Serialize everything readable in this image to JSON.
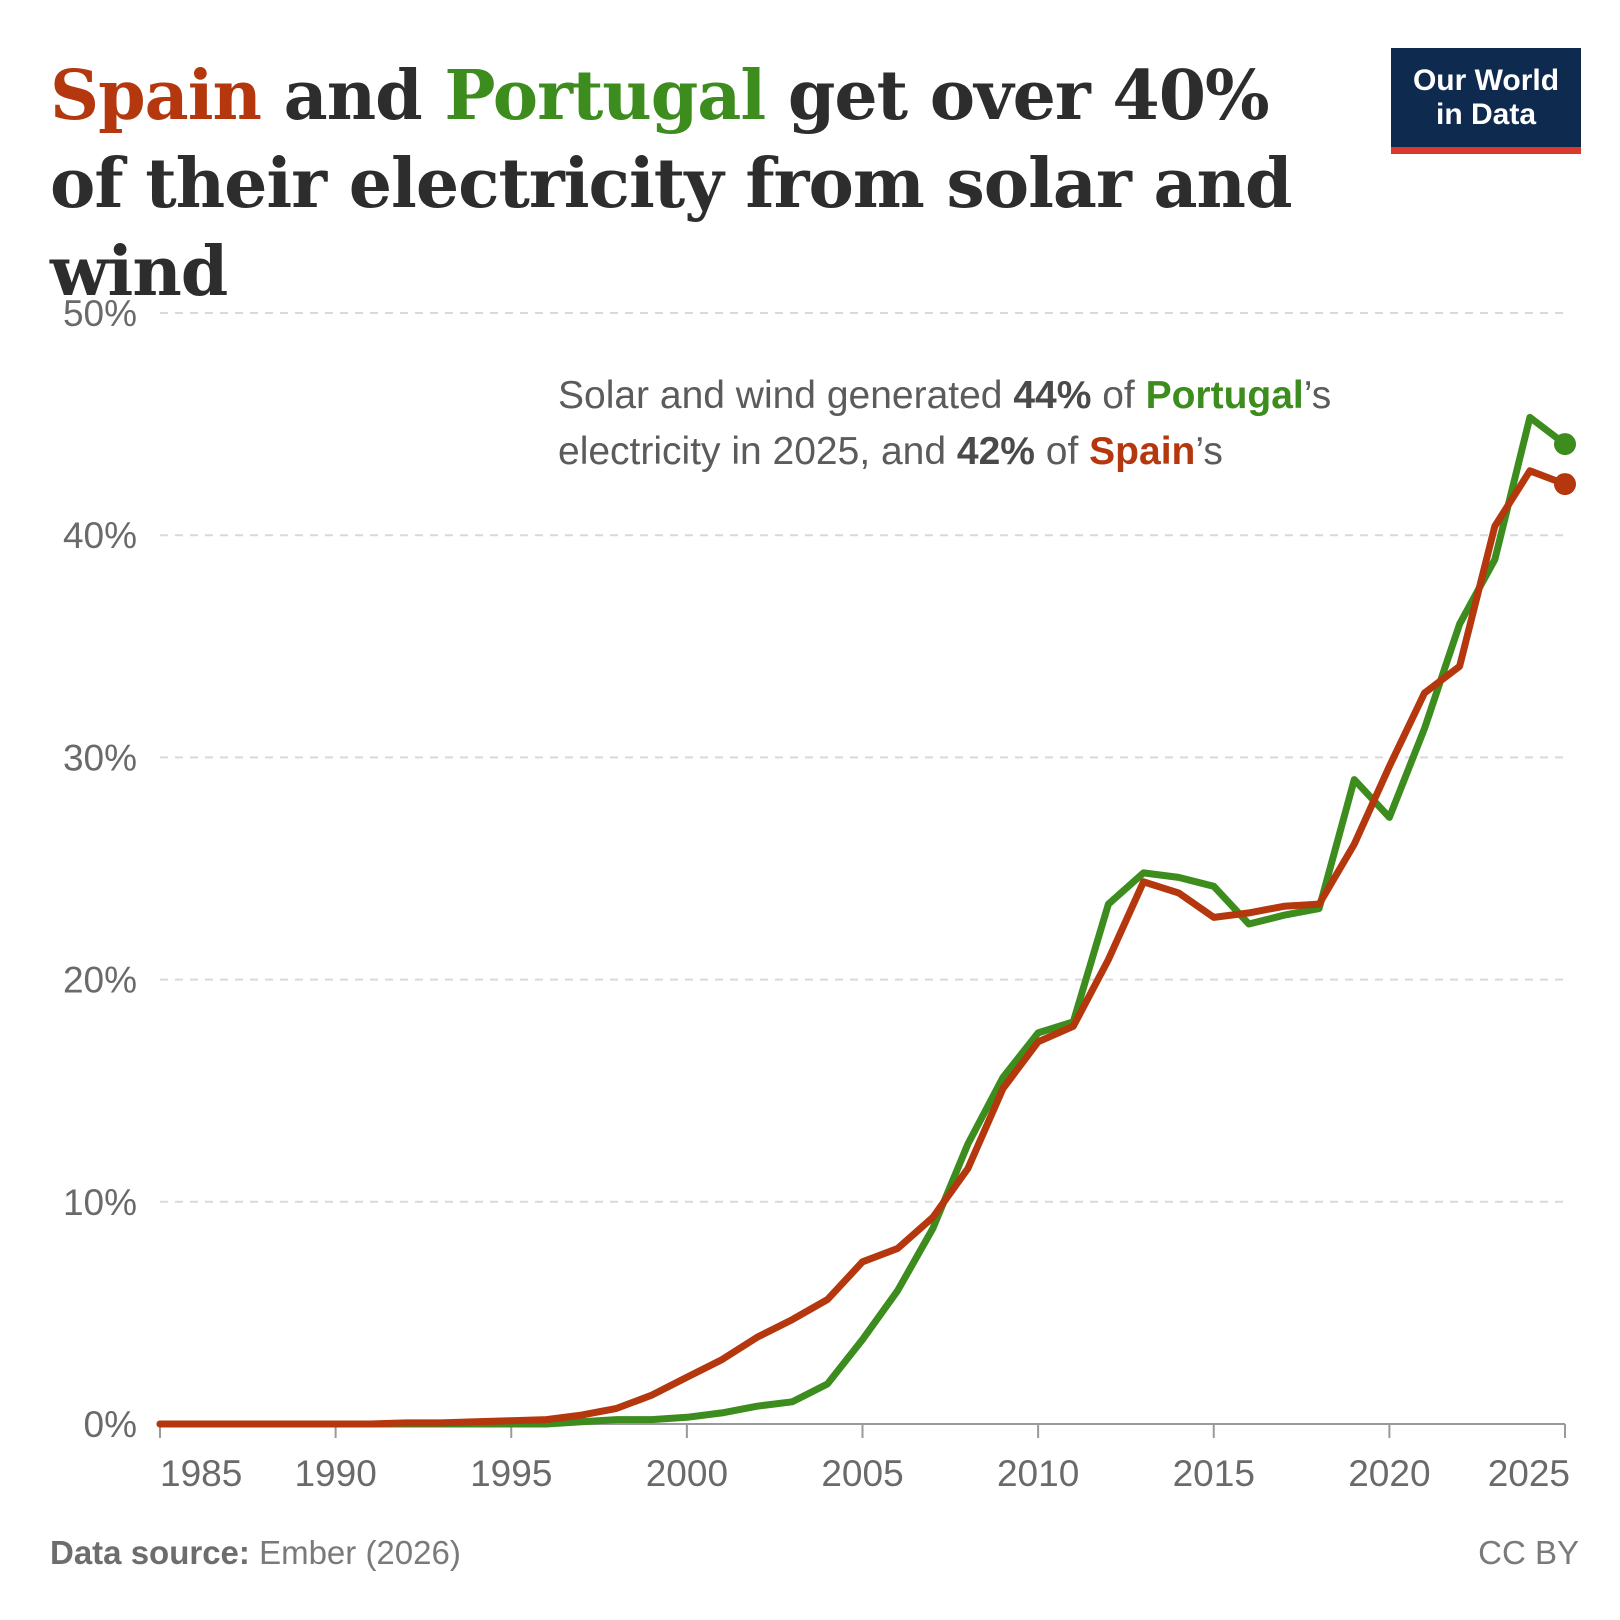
{
  "title": {
    "spain": "Spain",
    "and": " and ",
    "portugal": "Portugal",
    "rest": " get over 40% of their electricity from solar and wind"
  },
  "logo": {
    "line1": "Our World",
    "line2": "in Data"
  },
  "annotation": {
    "p1": "Solar and wind generated ",
    "portugal_value": "44%",
    "p2": " of ",
    "portugal": "Portugal",
    "p3": "’s",
    "p4": "electricity in 2025, and ",
    "spain_value": "42%",
    "p5": " of ",
    "spain": "Spain",
    "p6": "’s"
  },
  "footer": {
    "source_label": "Data source:",
    "source": " Ember (2026)",
    "license": "CC BY"
  },
  "colors": {
    "spain": "#b5370d",
    "portugal": "#3c8c1e",
    "text": "#2d2d2d",
    "axis_text": "#6a6a6a",
    "grid": "#d9d9d9"
  },
  "chart_data": {
    "type": "line",
    "ylabel": "",
    "xlabel": "",
    "xlim": [
      1985,
      2025
    ],
    "ylim": [
      0,
      50
    ],
    "yticks": [
      0,
      10,
      20,
      30,
      40,
      50
    ],
    "ytick_labels": [
      "0%",
      "10%",
      "20%",
      "30%",
      "40%",
      "50%"
    ],
    "xticks": [
      1985,
      1990,
      1995,
      2000,
      2005,
      2010,
      2015,
      2020,
      2025
    ],
    "xtick_labels": [
      "1985",
      "1990",
      "1995",
      "2000",
      "2005",
      "2010",
      "2015",
      "2020",
      "2025"
    ],
    "grid": "horizontal dashed",
    "x": [
      1985,
      1986,
      1987,
      1988,
      1989,
      1990,
      1991,
      1992,
      1993,
      1994,
      1995,
      1996,
      1997,
      1998,
      1999,
      2000,
      2001,
      2002,
      2003,
      2004,
      2005,
      2006,
      2007,
      2008,
      2009,
      2010,
      2011,
      2012,
      2013,
      2014,
      2015,
      2016,
      2017,
      2018,
      2019,
      2020,
      2021,
      2022,
      2023,
      2024,
      2025
    ],
    "series": [
      {
        "name": "Portugal",
        "color": "#3c8c1e",
        "values": [
          0,
          0,
          0,
          0,
          0,
          0,
          0,
          0,
          0,
          0,
          0,
          0,
          0.1,
          0.2,
          0.2,
          0.3,
          0.5,
          0.8,
          1.0,
          1.8,
          3.8,
          6.0,
          8.8,
          12.6,
          15.6,
          17.6,
          18.1,
          23.4,
          24.8,
          24.6,
          24.2,
          22.5,
          22.9,
          23.2,
          29.0,
          27.3,
          31.3,
          36.0,
          38.9,
          45.3,
          44.1
        ]
      },
      {
        "name": "Spain",
        "color": "#b5370d",
        "values": [
          0,
          0,
          0,
          0,
          0,
          0,
          0,
          0.05,
          0.05,
          0.1,
          0.15,
          0.2,
          0.4,
          0.7,
          1.3,
          2.1,
          2.9,
          3.9,
          4.7,
          5.6,
          7.3,
          7.9,
          9.3,
          11.5,
          15.1,
          17.2,
          17.9,
          20.9,
          24.4,
          23.9,
          22.8,
          23.0,
          23.3,
          23.4,
          26.1,
          29.6,
          32.9,
          34.1,
          40.4,
          42.9,
          42.3
        ]
      }
    ]
  }
}
